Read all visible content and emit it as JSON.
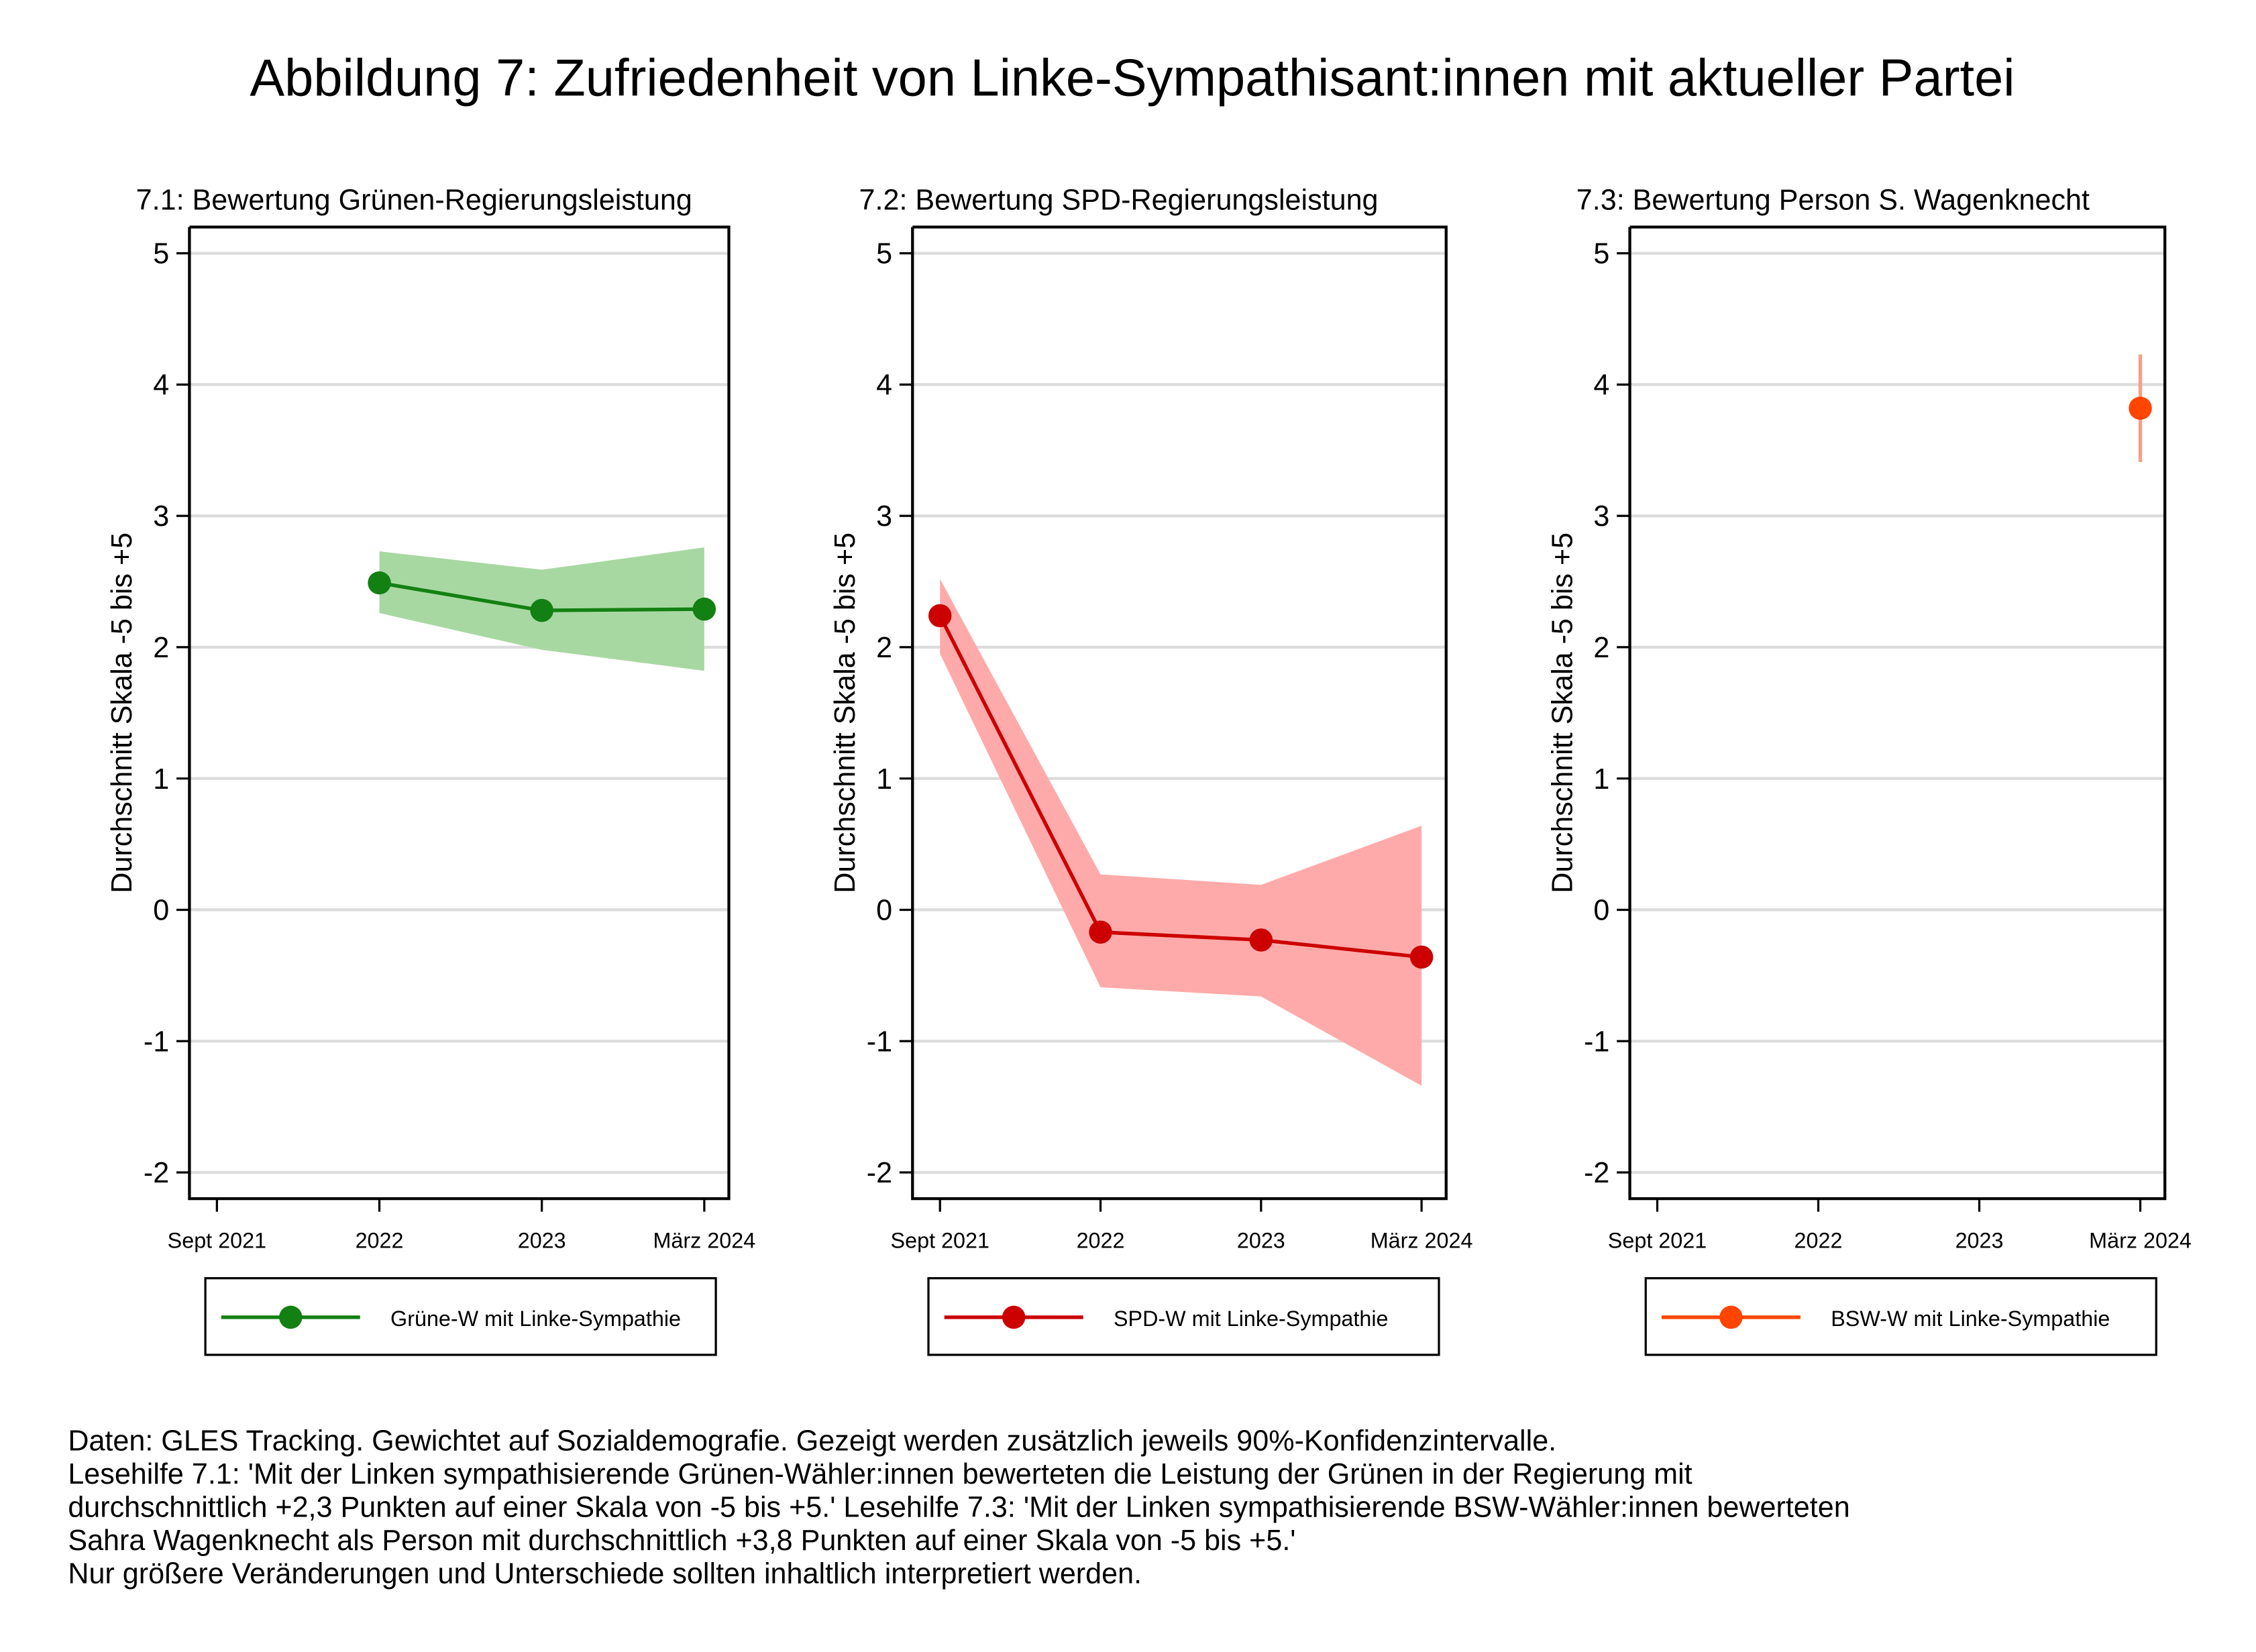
{
  "title": "Abbildung 7: Zufriedenheit von Linke-Sympathisant:innen mit aktueller Partei",
  "chart_data": [
    {
      "type": "line",
      "title": "7.1: Bewertung Grünen-Regierungsleistung",
      "y_label": "Durchschnitt Skala -5 bis +5",
      "categories": [
        "Sept 2021",
        "2022",
        "2023",
        "März 2024"
      ],
      "series": [
        {
          "name": "Grüne-W mit Linke-Sympathie",
          "color": "#138013",
          "band_color": "#a8d8a2",
          "values": [
            null,
            2.49,
            2.28,
            2.29
          ],
          "ci_low": [
            null,
            2.26,
            1.98,
            1.82
          ],
          "ci_high": [
            null,
            2.73,
            2.59,
            2.76
          ]
        }
      ],
      "ylim": [
        -2.2,
        5.2
      ],
      "yticks": [
        -2,
        -1,
        0,
        1,
        2,
        3,
        4,
        5
      ],
      "grid": true
    },
    {
      "type": "line",
      "title": "7.2: Bewertung SPD-Regierungsleistung",
      "y_label": "Durchschnitt Skala -5 bis +5",
      "categories": [
        "Sept 2021",
        "2022",
        "2023",
        "März 2024"
      ],
      "series": [
        {
          "name": "SPD-W mit Linke-Sympathie",
          "color": "#cc0000",
          "band_color": "#ffaaaa",
          "values": [
            2.24,
            -0.17,
            -0.23,
            -0.36
          ],
          "ci_low": [
            1.95,
            -0.59,
            -0.66,
            -1.34
          ],
          "ci_high": [
            2.52,
            0.27,
            0.19,
            0.64
          ]
        }
      ],
      "ylim": [
        -2.2,
        5.2
      ],
      "yticks": [
        -2,
        -1,
        0,
        1,
        2,
        3,
        4,
        5
      ],
      "grid": true
    },
    {
      "type": "line",
      "title": "7.3: Bewertung Person S. Wagenknecht",
      "y_label": "Durchschnitt Skala -5 bis +5",
      "categories": [
        "Sept 2021",
        "2022",
        "2023",
        "März 2024"
      ],
      "series": [
        {
          "name": "BSW-W mit Linke-Sympathie",
          "color": "#ff4500",
          "band_color": "#f5a08a",
          "values": [
            null,
            null,
            null,
            3.82
          ],
          "ci_low": [
            null,
            null,
            null,
            3.41
          ],
          "ci_high": [
            null,
            null,
            null,
            4.23
          ]
        }
      ],
      "ylim": [
        -2.2,
        5.2
      ],
      "yticks": [
        -2,
        -1,
        0,
        1,
        2,
        3,
        4,
        5
      ],
      "grid": true
    }
  ],
  "notes": [
    "Daten: GLES Tracking. Gewichtet auf Sozialdemografie. Gezeigt werden zusätzlich jeweils 90%-Konfidenzintervalle.",
    "Lesehilfe 7.1: 'Mit der Linken sympathisierende Grünen-Wähler:innen bewerteten die Leistung der Grünen in der Regierung mit",
    "durchschnittlich +2,3 Punkten auf einer Skala von -5 bis +5.' Lesehilfe 7.3: 'Mit der Linken sympathisierende BSW-Wähler:innen bewerteten",
    "Sahra Wagenknecht als Person mit durchschnittlich +3,8 Punkten auf einer Skala von -5 bis +5.'",
    "Nur größere Veränderungen und Unterschiede sollten inhaltlich interpretiert werden."
  ]
}
